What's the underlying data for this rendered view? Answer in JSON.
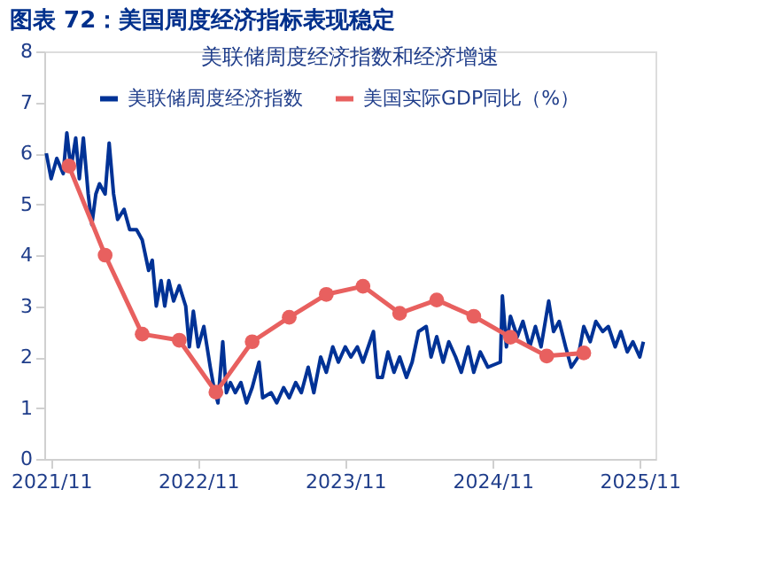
{
  "chart_data": {
    "type": "line",
    "title": "图表 72：美国周度经济指标表现稳定",
    "subtitle": "美联储周度经济指数和经济增速",
    "xlim": [
      "2021-10-15",
      "2025-12-10"
    ],
    "xticks": [
      {
        "value": "2021-11-01",
        "label": "2021/11"
      },
      {
        "value": "2022-11-01",
        "label": "2022/11"
      },
      {
        "value": "2023-11-01",
        "label": "2023/11"
      },
      {
        "value": "2024-11-01",
        "label": "2024/11"
      },
      {
        "value": "2025-11-01",
        "label": "2025/11"
      }
    ],
    "ylim": [
      0,
      8
    ],
    "yticks": [
      0,
      1,
      2,
      3,
      4,
      5,
      6,
      7,
      8
    ],
    "grid": false,
    "legend": "top",
    "series": [
      {
        "name": "美联储周度经济指数",
        "color": "#003296",
        "marker": "none",
        "x": [
          "2021-10-20",
          "2021-11-01",
          "2021-11-15",
          "2021-12-01",
          "2021-12-10",
          "2021-12-20",
          "2022-01-01",
          "2022-01-10",
          "2022-01-20",
          "2022-02-01",
          "2022-02-10",
          "2022-02-20",
          "2022-03-01",
          "2022-03-15",
          "2022-03-25",
          "2022-04-05",
          "2022-04-15",
          "2022-05-01",
          "2022-05-15",
          "2022-06-01",
          "2022-06-15",
          "2022-07-01",
          "2022-07-10",
          "2022-07-20",
          "2022-08-01",
          "2022-08-10",
          "2022-08-20",
          "2022-09-01",
          "2022-09-15",
          "2022-10-01",
          "2022-10-10",
          "2022-10-20",
          "2022-11-01",
          "2022-11-15",
          "2022-12-01",
          "2022-12-10",
          "2022-12-20",
          "2023-01-01",
          "2023-01-10",
          "2023-01-20",
          "2023-02-01",
          "2023-02-15",
          "2023-03-01",
          "2023-03-15",
          "2023-04-01",
          "2023-04-10",
          "2023-05-01",
          "2023-05-15",
          "2023-06-01",
          "2023-06-15",
          "2023-07-01",
          "2023-07-15",
          "2023-08-01",
          "2023-08-15",
          "2023-09-01",
          "2023-09-15",
          "2023-10-01",
          "2023-10-15",
          "2023-11-01",
          "2023-11-15",
          "2023-12-01",
          "2023-12-15",
          "2024-01-10",
          "2024-01-20",
          "2024-02-01",
          "2024-02-15",
          "2024-03-01",
          "2024-03-15",
          "2024-04-01",
          "2024-04-15",
          "2024-05-01",
          "2024-05-20",
          "2024-06-01",
          "2024-06-15",
          "2024-07-01",
          "2024-07-15",
          "2024-08-01",
          "2024-08-15",
          "2024-09-01",
          "2024-09-15",
          "2024-10-01",
          "2024-10-20",
          "2024-11-20",
          "2024-11-25",
          "2024-12-05",
          "2024-12-15",
          "2025-01-01",
          "2025-01-15",
          "2025-02-01",
          "2025-02-15",
          "2025-03-01",
          "2025-03-20",
          "2025-04-01",
          "2025-04-15",
          "2025-05-01",
          "2025-05-15",
          "2025-06-01",
          "2025-06-15",
          "2025-07-01",
          "2025-07-15",
          "2025-08-01",
          "2025-08-15",
          "2025-09-01",
          "2025-09-15",
          "2025-10-01",
          "2025-10-15",
          "2025-11-01",
          "2025-11-10"
        ],
        "values": [
          6.0,
          5.5,
          5.9,
          5.6,
          6.4,
          5.7,
          6.3,
          5.5,
          6.3,
          5.2,
          4.6,
          5.2,
          5.4,
          5.2,
          6.2,
          5.2,
          4.7,
          4.9,
          4.5,
          4.5,
          4.3,
          3.7,
          3.9,
          3.0,
          3.5,
          3.0,
          3.5,
          3.1,
          3.4,
          3.0,
          2.2,
          2.9,
          2.2,
          2.6,
          1.8,
          1.4,
          1.1,
          2.3,
          1.3,
          1.5,
          1.3,
          1.5,
          1.1,
          1.4,
          1.9,
          1.2,
          1.3,
          1.1,
          1.4,
          1.2,
          1.5,
          1.3,
          1.8,
          1.3,
          2.0,
          1.7,
          2.2,
          1.9,
          2.2,
          2.0,
          2.2,
          1.9,
          2.5,
          1.6,
          1.6,
          2.1,
          1.7,
          2.0,
          1.6,
          1.9,
          2.5,
          2.6,
          2.0,
          2.4,
          1.9,
          2.3,
          2.0,
          1.7,
          2.2,
          1.7,
          2.1,
          1.8,
          1.9,
          3.2,
          2.2,
          2.8,
          2.4,
          2.7,
          2.2,
          2.6,
          2.2,
          3.1,
          2.5,
          2.7,
          2.2,
          1.8,
          2.0,
          2.6,
          2.3,
          2.7,
          2.5,
          2.6,
          2.2,
          2.5,
          2.1,
          2.3,
          2.0,
          2.3
        ]
      },
      {
        "name": "美国实际GDP同比（%）",
        "color": "#e8605f",
        "marker": "circle",
        "x": [
          "2021-12-15",
          "2022-03-15",
          "2022-06-15",
          "2022-09-15",
          "2022-12-15",
          "2023-03-15",
          "2023-06-15",
          "2023-09-15",
          "2023-12-15",
          "2024-03-15",
          "2024-06-15",
          "2024-09-15",
          "2024-12-15",
          "2025-03-15",
          "2025-06-15"
        ],
        "values": [
          5.75,
          4.0,
          2.45,
          2.33,
          1.31,
          2.3,
          2.78,
          3.23,
          3.39,
          2.86,
          3.12,
          2.8,
          2.39,
          2.02,
          2.08
        ]
      }
    ]
  }
}
